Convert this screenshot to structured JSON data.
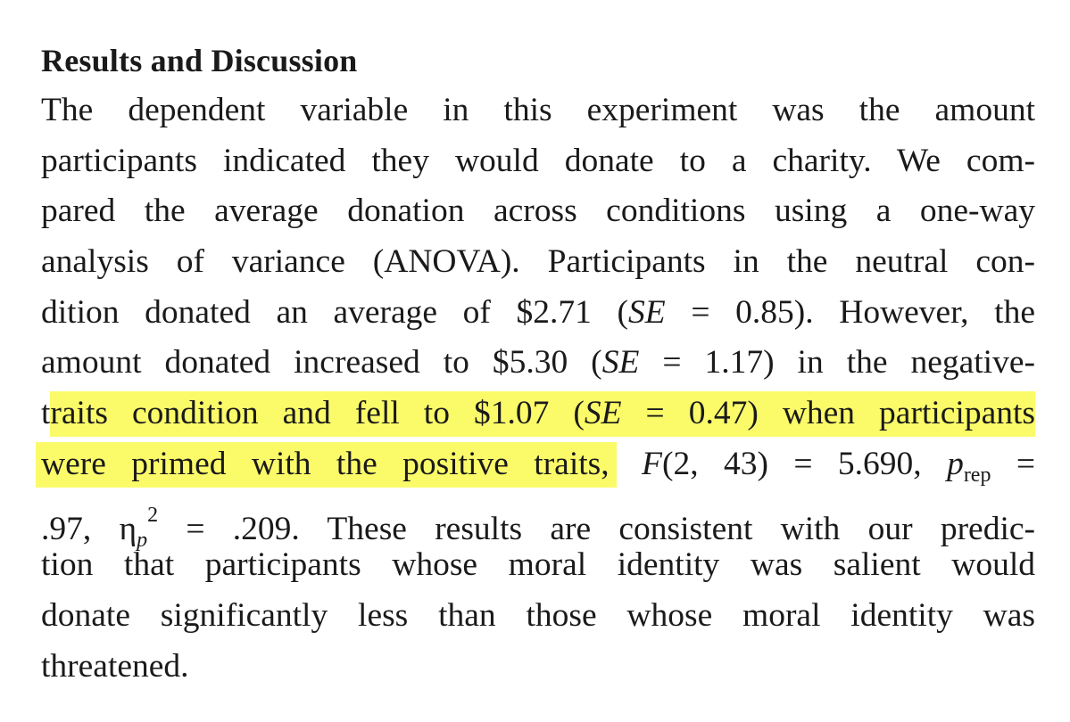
{
  "section": {
    "heading": "Results and Discussion"
  },
  "paragraph": {
    "line1": "The dependent variable in this experiment was the amount",
    "line2": "participants indicated they would donate to a charity. We com-",
    "line3": "pared the average donation across conditions using a one-way",
    "line4": "analysis of variance (ANOVA). Participants in the neutral con-",
    "line5_a": "dition donated an average of $2.71 (",
    "line5_se": "SE",
    "line5_b": " = 0.85). However, the",
    "line6_a": "amount donated increased to $5.30 (",
    "line6_se": "SE",
    "line6_b": " = 1.17) in the negative-",
    "line7_pre": "t",
    "line7_hl_a": "raits condition and fell to $1.07 (",
    "line7_se": "SE",
    "line7_hl_b": " = 0.47) when participants",
    "line8_hl": "were primed with the positive traits,",
    "line8_f": "F",
    "line8_b": "(2, 43) = 5.690,",
    "line8_p": "p",
    "line8_p_sub": "rep",
    "line8_eq": "=",
    "line9_a": ".97, ",
    "line9_eta": "η",
    "line9_eta_sub": "p",
    "line9_eta_sup": "2",
    "line9_b": " = .209. These results are consistent with our predic-",
    "line10": "tion that participants whose moral identity was salient would",
    "line11": "donate significantly less than those whose moral identity was",
    "line12": "threatened."
  },
  "colors": {
    "highlight": "#fbfb6a",
    "text": "#1a1a1a",
    "background": "#ffffff"
  }
}
